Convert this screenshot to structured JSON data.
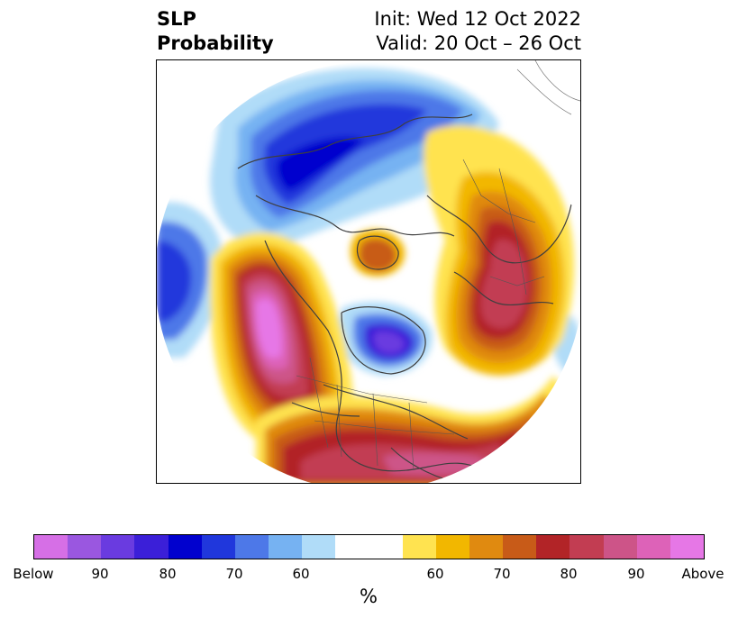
{
  "header": {
    "title_line1": "SLP",
    "title_line2": "Probability",
    "init_text": "Init: Wed 12 Oct 2022",
    "valid_text": "Valid: 20 Oct – 26 Oct"
  },
  "map": {
    "projection": "north-polar-stereographic",
    "features": [
      "coastlines",
      "country-borders",
      "state-borders"
    ]
  },
  "legend": {
    "units": "%",
    "colors": [
      "#d66fe6",
      "#9a57e0",
      "#6a3be0",
      "#3b1fd8",
      "#0101ce",
      "#2037dc",
      "#4d78e8",
      "#76b2f2",
      "#b0dcf8",
      "#ffffff",
      "#ffe350",
      "#f2b700",
      "#e08a10",
      "#c85b18",
      "#b22427",
      "#c23d52",
      "#cd5488",
      "#dd62b8",
      "#e677e6"
    ],
    "tick_labels": [
      "Below",
      "90",
      "80",
      "70",
      "60",
      "60",
      "70",
      "80",
      "90",
      "Above"
    ]
  }
}
